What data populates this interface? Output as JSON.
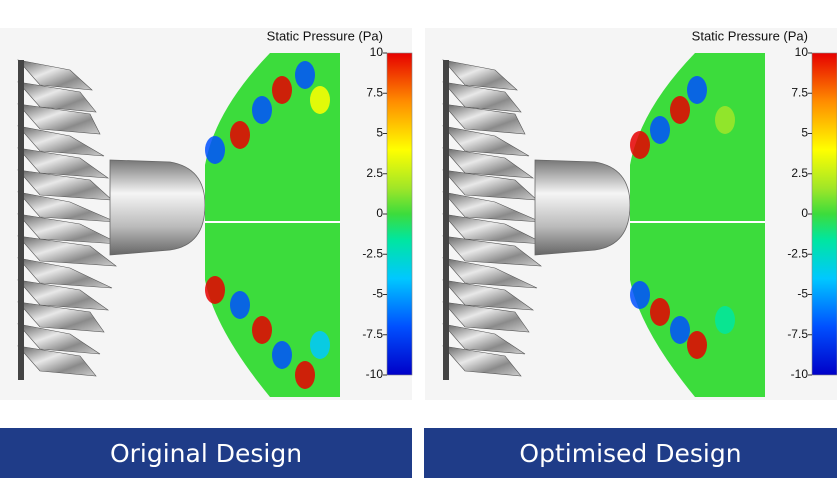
{
  "panels": [
    {
      "colorbar": {
        "title": "Static Pressure (Pa)",
        "ticks": [
          10,
          7.5,
          5,
          2.5,
          0,
          -2.5,
          -5,
          -7.5,
          -10
        ]
      },
      "caption": "Original Design"
    },
    {
      "colorbar": {
        "title": "Static Pressure (Pa)",
        "ticks": [
          10,
          7.5,
          5,
          2.5,
          0,
          -2.5,
          -5,
          -7.5,
          -10
        ]
      },
      "caption": "Optimised Design"
    }
  ]
}
